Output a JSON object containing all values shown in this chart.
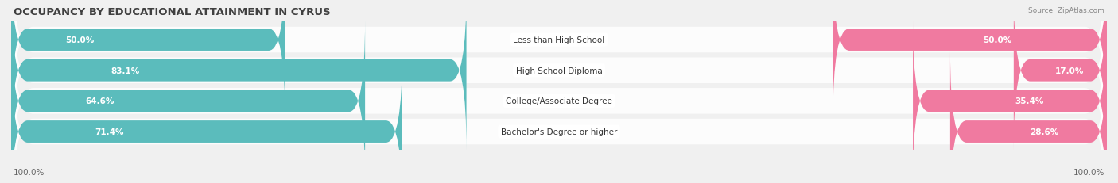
{
  "title": "OCCUPANCY BY EDUCATIONAL ATTAINMENT IN CYRUS",
  "source": "Source: ZipAtlas.com",
  "categories": [
    "Less than High School",
    "High School Diploma",
    "College/Associate Degree",
    "Bachelor's Degree or higher"
  ],
  "owner_pct": [
    50.0,
    83.1,
    64.6,
    71.4
  ],
  "renter_pct": [
    50.0,
    17.0,
    35.4,
    28.6
  ],
  "owner_color": "#5bbcbc",
  "renter_color": "#f07aa0",
  "renter_color_light": "#f4a8c0",
  "bg_color": "#f0f0f0",
  "row_bg_color": "#e8e8e8",
  "title_fontsize": 9.5,
  "label_fontsize": 7.5,
  "cat_fontsize": 7.5,
  "tick_fontsize": 7.5,
  "bar_height": 0.72,
  "left_label": "100.0%",
  "right_label": "100.0%",
  "xlim": 100
}
